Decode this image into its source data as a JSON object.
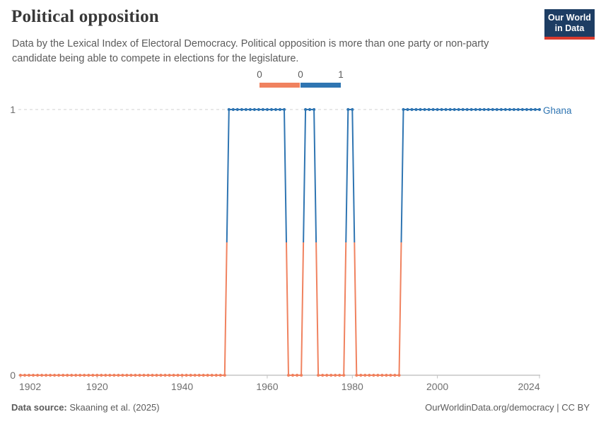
{
  "header": {
    "title": "Political opposition",
    "subtitle": "Data by the Lexical Index of Electoral Democracy. Political opposition is more than one party or non-party candidate being able to compete in elections for the legislature."
  },
  "logo": {
    "line1": "Our World",
    "line2": "in Data",
    "bg_color": "#1d3d63",
    "accent_color": "#d93a2d"
  },
  "legend": {
    "labels": [
      "0",
      "0",
      "1"
    ]
  },
  "chart_data": {
    "type": "line",
    "title": "Political opposition",
    "entity_label": "Ghana",
    "x_range": [
      1902,
      2024
    ],
    "x_ticks": [
      1902,
      1920,
      1940,
      1960,
      1980,
      2000,
      2024
    ],
    "y_ticks": [
      "0",
      "1"
    ],
    "ylim": [
      0,
      1
    ],
    "grid": "dashed horizontal gridline at y=1, solid axis line at y=0",
    "legend_position": "top-center",
    "colors": {
      "value0": "#F0825F",
      "value1": "#2F75B2"
    },
    "series": [
      {
        "name": "Ghana",
        "runs": [
          {
            "from": 1902,
            "to": 1950,
            "value": 0
          },
          {
            "from": 1951,
            "to": 1964,
            "value": 1
          },
          {
            "from": 1965,
            "to": 1968,
            "value": 0
          },
          {
            "from": 1969,
            "to": 1971,
            "value": 1
          },
          {
            "from": 1972,
            "to": 1978,
            "value": 0
          },
          {
            "from": 1979,
            "to": 1980,
            "value": 1
          },
          {
            "from": 1981,
            "to": 1991,
            "value": 0
          },
          {
            "from": 1992,
            "to": 2024,
            "value": 1
          }
        ]
      }
    ]
  },
  "axis": {
    "y1": "1",
    "y0": "0"
  },
  "footer": {
    "source_label": "Data source:",
    "source_value": " Skaaning et al. (2025)",
    "link": "OurWorldinData.org/democracy | CC BY"
  }
}
